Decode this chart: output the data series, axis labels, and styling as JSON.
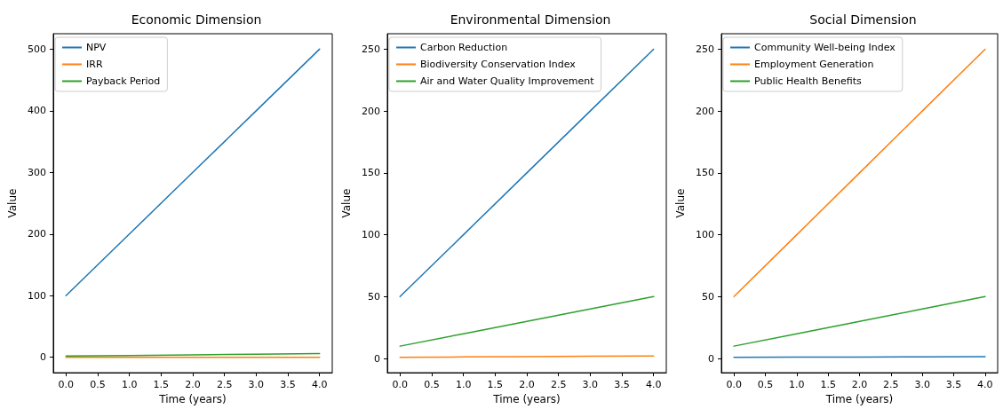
{
  "chart_data": [
    {
      "type": "line",
      "title": "Economic Dimension",
      "xlabel": "Time (years)",
      "ylabel": "Value",
      "x": [
        0,
        1,
        2,
        3,
        4
      ],
      "series": [
        {
          "name": "NPV",
          "color": "#1f77b4",
          "values": [
            100,
            200,
            300,
            400,
            500
          ]
        },
        {
          "name": "IRR",
          "color": "#ff7f0e",
          "values": [
            0,
            0,
            0,
            0,
            0
          ]
        },
        {
          "name": "Payback Period",
          "color": "#2ca02c",
          "values": [
            2,
            3,
            4,
            5,
            6
          ]
        }
      ],
      "xlim": [
        -0.2,
        4.2
      ],
      "xticks": [
        {
          "value": 0,
          "label": "0.0"
        },
        {
          "value": 0.5,
          "label": "0.5"
        },
        {
          "value": 1,
          "label": "1.0"
        },
        {
          "value": 1.5,
          "label": "1.5"
        },
        {
          "value": 2,
          "label": "2.0"
        },
        {
          "value": 2.5,
          "label": "2.5"
        },
        {
          "value": 3,
          "label": "3.0"
        },
        {
          "value": 3.5,
          "label": "3.5"
        },
        {
          "value": 4,
          "label": "4.0"
        }
      ],
      "ylim": [
        -25,
        525
      ],
      "yticks": [
        0,
        100,
        200,
        300,
        400,
        500
      ],
      "grid": false,
      "legend": "top left",
      "marker": "none",
      "line_style": "solid"
    },
    {
      "type": "line",
      "title": "Environmental Dimension",
      "xlabel": "Time (years)",
      "ylabel": "Value",
      "x": [
        0,
        1,
        2,
        3,
        4
      ],
      "series": [
        {
          "name": "Carbon Reduction",
          "color": "#1f77b4",
          "values": [
            50,
            100,
            150,
            200,
            250
          ]
        },
        {
          "name": "Biodiversity Conservation Index",
          "color": "#ff7f0e",
          "values": [
            1,
            1.25,
            1.5,
            1.75,
            2
          ]
        },
        {
          "name": "Air and Water Quality Improvement",
          "color": "#2ca02c",
          "values": [
            10,
            20,
            30,
            40,
            50
          ]
        }
      ],
      "xlim": [
        -0.2,
        4.2
      ],
      "xticks": [
        {
          "value": 0,
          "label": "0.0"
        },
        {
          "value": 0.5,
          "label": "0.5"
        },
        {
          "value": 1,
          "label": "1.0"
        },
        {
          "value": 1.5,
          "label": "1.5"
        },
        {
          "value": 2,
          "label": "2.0"
        },
        {
          "value": 2.5,
          "label": "2.5"
        },
        {
          "value": 3,
          "label": "3.0"
        },
        {
          "value": 3.5,
          "label": "3.5"
        },
        {
          "value": 4,
          "label": "4.0"
        }
      ],
      "ylim": [
        -11.5,
        262.5
      ],
      "yticks": [
        0,
        50,
        100,
        150,
        200,
        250
      ],
      "grid": false,
      "legend": "top left",
      "marker": "none",
      "line_style": "solid"
    },
    {
      "type": "line",
      "title": "Social Dimension",
      "xlabel": "Time (years)",
      "ylabel": "Value",
      "x": [
        0,
        1,
        2,
        3,
        4
      ],
      "series": [
        {
          "name": "Community Well-being Index",
          "color": "#1f77b4",
          "values": [
            1,
            1.1,
            1.2,
            1.3,
            1.4
          ]
        },
        {
          "name": "Employment Generation",
          "color": "#ff7f0e",
          "values": [
            50,
            100,
            150,
            200,
            250
          ]
        },
        {
          "name": "Public Health Benefits",
          "color": "#2ca02c",
          "values": [
            10,
            20,
            30,
            40,
            50
          ]
        }
      ],
      "xlim": [
        -0.2,
        4.2
      ],
      "xticks": [
        {
          "value": 0,
          "label": "0.0"
        },
        {
          "value": 0.5,
          "label": "0.5"
        },
        {
          "value": 1,
          "label": "1.0"
        },
        {
          "value": 1.5,
          "label": "1.5"
        },
        {
          "value": 2,
          "label": "2.0"
        },
        {
          "value": 2.5,
          "label": "2.5"
        },
        {
          "value": 3,
          "label": "3.0"
        },
        {
          "value": 3.5,
          "label": "3.5"
        },
        {
          "value": 4,
          "label": "4.0"
        }
      ],
      "ylim": [
        -11.5,
        262.5
      ],
      "yticks": [
        0,
        50,
        100,
        150,
        200,
        250
      ],
      "grid": false,
      "legend": "top left",
      "marker": "none",
      "line_style": "solid"
    }
  ]
}
